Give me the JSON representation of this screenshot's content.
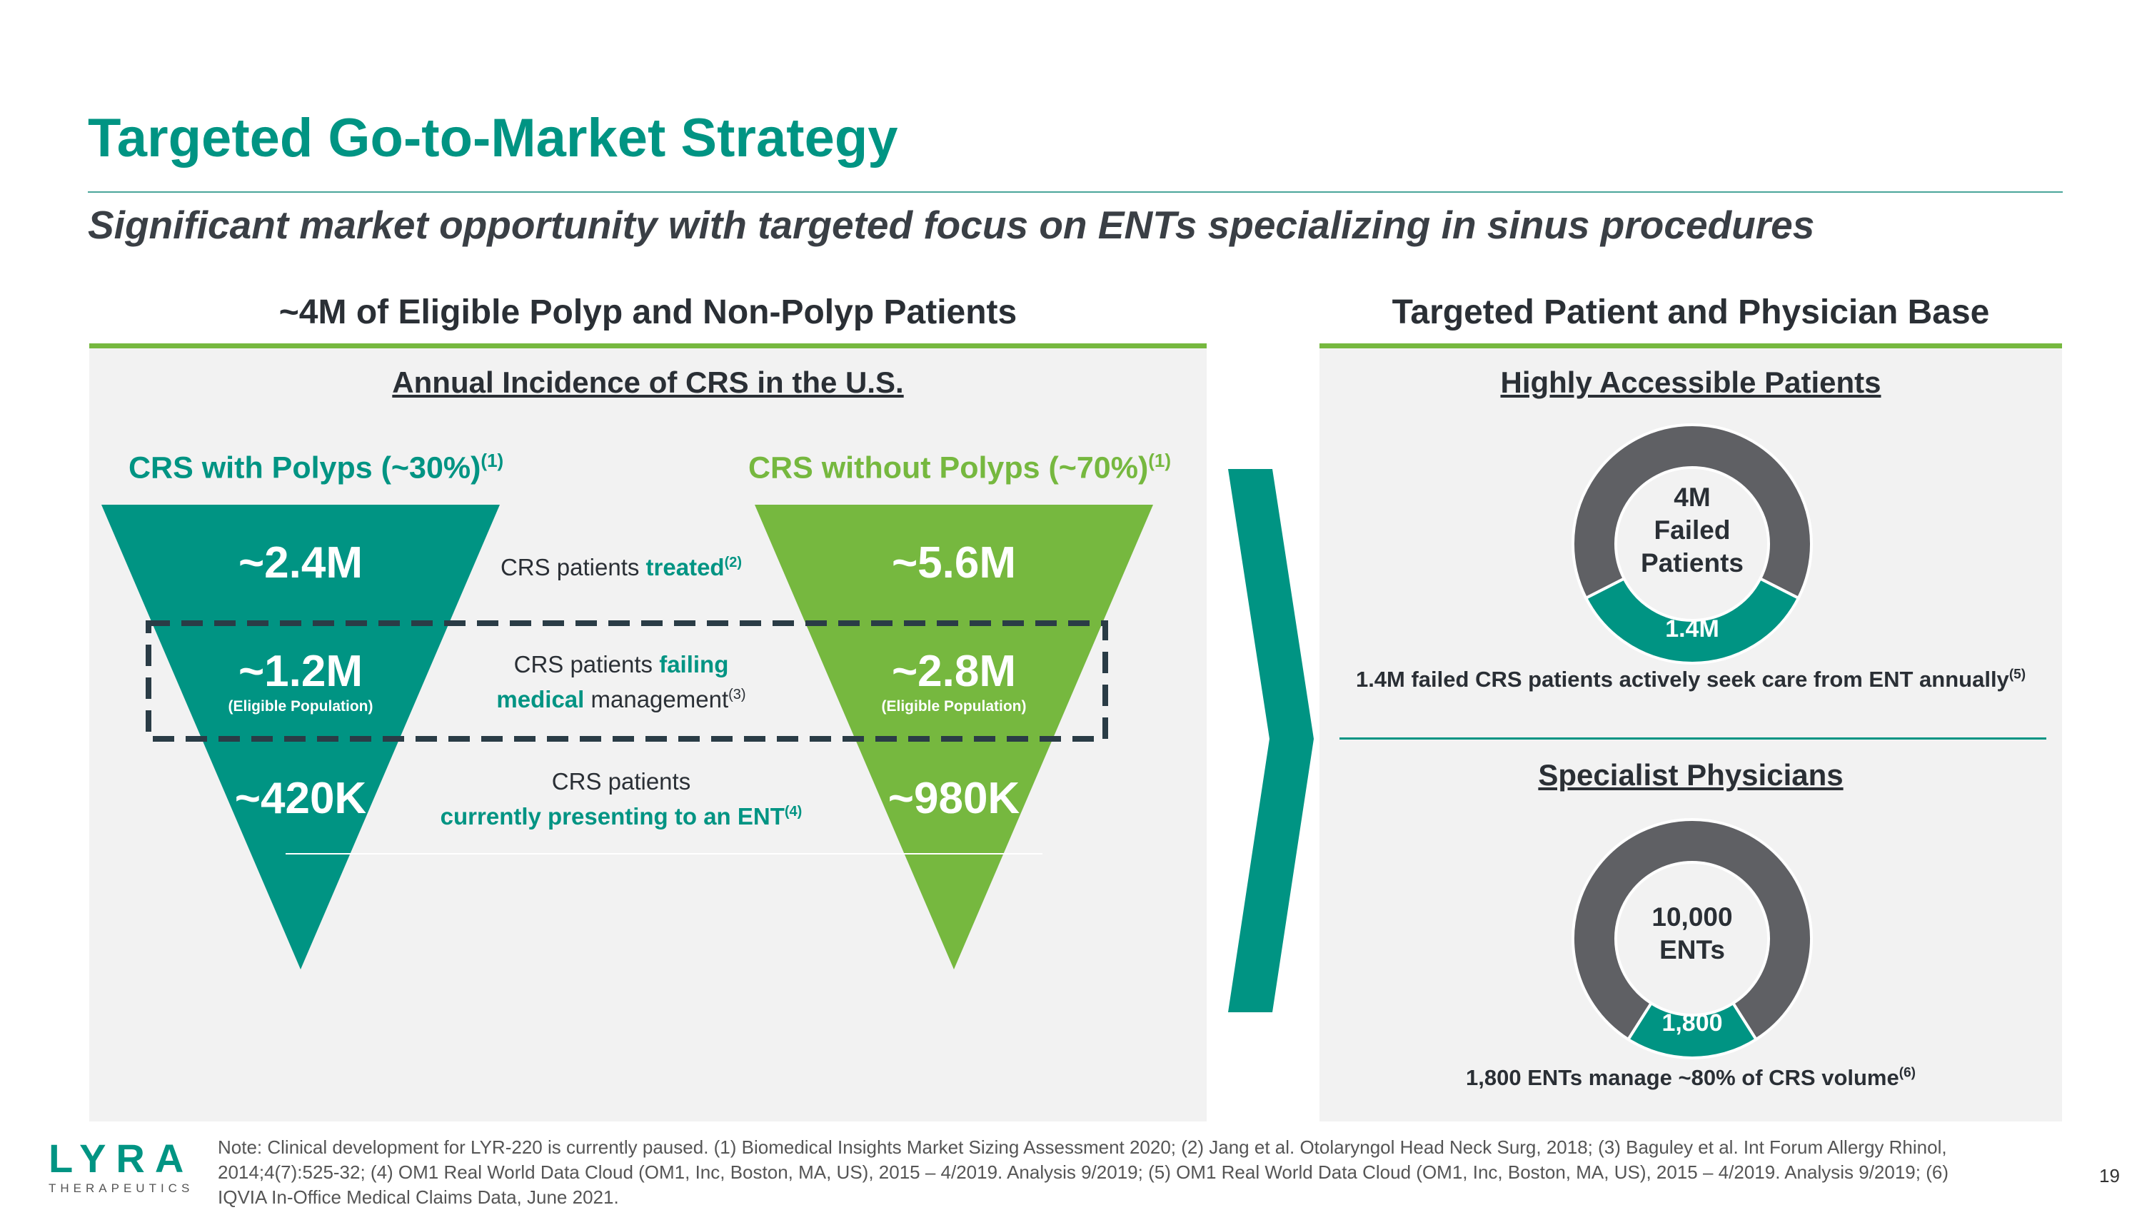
{
  "title": "Targeted Go-to-Market Strategy",
  "subtitle": "Significant market opportunity with targeted focus on ENTs specializing in sinus procedures",
  "left": {
    "heading": "~4M of Eligible Polyp and Non-Polyp Patients",
    "subheading": "Annual Incidence of CRS in the U.S.",
    "polyp_label": "CRS with Polyps (~30%)",
    "nonpolyp_label": "CRS without Polyps (~70%)",
    "label_footnote": "(1)",
    "polyp_values": [
      "~2.4M",
      "~1.2M",
      "~420K"
    ],
    "nonpolyp_values": [
      "~5.6M",
      "~2.8M",
      "~980K"
    ],
    "eligible_note": "(Eligible Population)",
    "row1": {
      "text": "CRS patients ",
      "highlight": "treated",
      "footnote": "(2)"
    },
    "row2": {
      "text1": "CRS patients ",
      "highlight1": "failing",
      "highlight2": "medical",
      "text2": " management",
      "footnote": "(3)"
    },
    "row3": {
      "text": "CRS patients",
      "highlight": "currently presenting to an ENT",
      "footnote": "(4)"
    },
    "colors": {
      "teal": "#009483",
      "green": "#76b83f",
      "dark": "#2a3c46"
    }
  },
  "right": {
    "heading": "Targeted Patient and Physician Base",
    "patients_heading": "Highly Accessible Patients",
    "donut1": {
      "center_line1": "4M",
      "center_line2": "Failed",
      "center_line3": "Patients",
      "segment_label": "1.4M",
      "total": 4.0,
      "segment": 1.4
    },
    "caption1": "1.4M failed CRS patients actively seek care from ENT annually",
    "caption1_footnote": "(5)",
    "physicians_heading": "Specialist Physicians",
    "donut2": {
      "center_line1": "10,000",
      "center_line2": "ENTs",
      "segment_label": "1,800",
      "total": 10000,
      "segment": 1800
    },
    "caption2": "1,800 ENTs manage ~80% of CRS volume",
    "caption2_footnote": "(6)"
  },
  "footer": {
    "logo_text": "LYRA",
    "logo_sub": "THERAPEUTICS",
    "note": "Note: Clinical development for LYR-220 is currently paused. (1) Biomedical Insights Market Sizing Assessment 2020; (2) Jang et al. Otolaryngol Head Neck Surg, 2018; (3) Baguley et al. Int Forum Allergy Rhinol, 2014;4(7):525-32; (4) OM1 Real World Data Cloud (OM1, Inc, Boston, MA, US), 2015 – 4/2019. Analysis 9/2019; (5) OM1 Real World Data Cloud (OM1, Inc, Boston, MA, US), 2015 – 4/2019. Analysis 9/2019; (6) IQVIA In-Office Medical Claims Data, June 2021.",
    "page_number": "19"
  }
}
